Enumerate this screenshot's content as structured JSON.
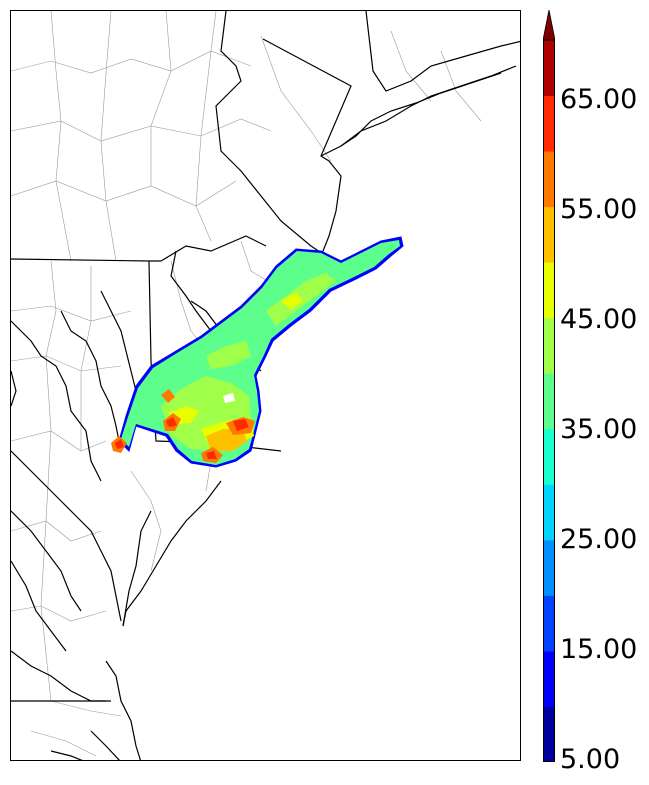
{
  "colorbar": {
    "ticks": [
      "5.00",
      "15.00",
      "25.00",
      "35.00",
      "45.00",
      "55.00",
      "65.00"
    ],
    "levels": [
      5,
      10,
      15,
      20,
      25,
      30,
      35,
      40,
      45,
      50,
      55,
      60,
      65,
      70
    ],
    "colors": [
      "#00009f",
      "#0000ff",
      "#0042ff",
      "#0090ff",
      "#00d4ff",
      "#18ffd0",
      "#5cff8c",
      "#a0ff48",
      "#e8ff00",
      "#ffc000",
      "#ff7800",
      "#ff2a00",
      "#b00000"
    ],
    "extend": "max",
    "extend_color": "#800000"
  }
}
